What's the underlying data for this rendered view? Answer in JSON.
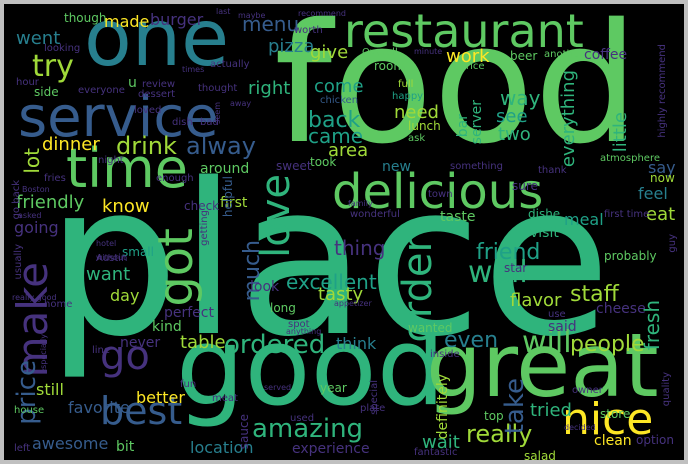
{
  "palette": {
    "background": "#000000",
    "border": "#c0c0c0",
    "yellow": "#fde725",
    "lime": "#a0da39",
    "green": "#5ec962",
    "sea": "#2fb47c",
    "teal": "#1fa187",
    "blue": "#277f8e",
    "slate": "#365c8d",
    "indigo": "#46327e",
    "purple": "#440154"
  },
  "words": [
    {
      "text": "place",
      "color": "#2fb47c"
    },
    {
      "text": "food",
      "color": "#5ec962"
    },
    {
      "text": "good",
      "color": "#2fb47c"
    },
    {
      "text": "great",
      "color": "#5ec962"
    },
    {
      "text": "one",
      "color": "#277f8e"
    },
    {
      "text": "restaurant",
      "color": "#5ec962"
    },
    {
      "text": "service",
      "color": "#365c8d"
    },
    {
      "text": "time",
      "color": "#5ec962"
    },
    {
      "text": "delicious",
      "color": "#5ec962"
    },
    {
      "text": "nice",
      "color": "#fde725"
    },
    {
      "text": "got",
      "color": "#5ec962"
    },
    {
      "text": "love",
      "color": "#2fb47c"
    },
    {
      "text": "order",
      "color": "#2fb47c"
    },
    {
      "text": "make",
      "color": "#46327e"
    },
    {
      "text": "go",
      "color": "#46327e"
    },
    {
      "text": "best",
      "color": "#365c8d"
    },
    {
      "text": "well",
      "color": "#2fb47c"
    },
    {
      "text": "ordered",
      "color": "#2fb47c"
    },
    {
      "text": "really",
      "color": "#a0da39"
    },
    {
      "text": "amazing",
      "color": "#2fb47c"
    },
    {
      "text": "will",
      "color": "#5ec962"
    },
    {
      "text": "staff",
      "color": "#a0da39"
    },
    {
      "text": "try",
      "color": "#a0da39"
    },
    {
      "text": "drink",
      "color": "#a0da39"
    },
    {
      "text": "alway",
      "color": "#365c8d"
    },
    {
      "text": "back",
      "color": "#1fa187"
    },
    {
      "text": "came",
      "color": "#1fa187"
    },
    {
      "text": "friend",
      "color": "#1fa187"
    },
    {
      "text": "take",
      "color": "#365c8d"
    },
    {
      "text": "people",
      "color": "#a0da39"
    },
    {
      "text": "price",
      "color": "#365c8d"
    },
    {
      "text": "even",
      "color": "#277f8e"
    },
    {
      "text": "excellent",
      "color": "#1fa187"
    },
    {
      "text": "much",
      "color": "#365c8d"
    },
    {
      "text": "thing",
      "color": "#46327e"
    },
    {
      "text": "table",
      "color": "#a0da39"
    },
    {
      "text": "fresh",
      "color": "#2fb47c"
    },
    {
      "text": "went",
      "color": "#277f8e"
    },
    {
      "text": "made",
      "color": "#fde725"
    },
    {
      "text": "menu",
      "color": "#365c8d"
    },
    {
      "text": "burger",
      "color": "#46327e"
    },
    {
      "text": "pizza",
      "color": "#277f8e"
    },
    {
      "text": "give",
      "color": "#a0da39"
    },
    {
      "text": "work",
      "color": "#fde725"
    },
    {
      "text": "way",
      "color": "#2fb47c"
    },
    {
      "text": "see",
      "color": "#1fa187"
    },
    {
      "text": "two",
      "color": "#2fb47c"
    },
    {
      "text": "need",
      "color": "#a0da39"
    },
    {
      "text": "right",
      "color": "#2fb47c"
    },
    {
      "text": "come",
      "color": "#1fa187"
    },
    {
      "text": "area",
      "color": "#a0da39"
    },
    {
      "text": "lot",
      "color": "#a0da39"
    },
    {
      "text": "dinner",
      "color": "#fde725"
    },
    {
      "text": "friendly",
      "color": "#5ec962"
    },
    {
      "text": "know",
      "color": "#fde725"
    },
    {
      "text": "going",
      "color": "#46327e"
    },
    {
      "text": "want",
      "color": "#2fb47c"
    },
    {
      "text": "day",
      "color": "#a0da39"
    },
    {
      "text": "tasty",
      "color": "#a0da39"
    },
    {
      "text": "flavor",
      "color": "#a0da39"
    },
    {
      "text": "eat",
      "color": "#a0da39"
    },
    {
      "text": "feel",
      "color": "#277f8e"
    },
    {
      "text": "say",
      "color": "#365c8d"
    },
    {
      "text": "meal",
      "color": "#1fa187"
    },
    {
      "text": "still",
      "color": "#a0da39"
    },
    {
      "text": "better",
      "color": "#fde725"
    },
    {
      "text": "favorite",
      "color": "#365c8d"
    },
    {
      "text": "awesome",
      "color": "#365c8d"
    },
    {
      "text": "bit",
      "color": "#5ec962"
    },
    {
      "text": "location",
      "color": "#277f8e"
    },
    {
      "text": "experience",
      "color": "#46327e"
    },
    {
      "text": "wait",
      "color": "#2fb47c"
    },
    {
      "text": "tried",
      "color": "#2fb47c"
    },
    {
      "text": "think",
      "color": "#277f8e"
    },
    {
      "text": "everything",
      "color": "#2fb47c"
    },
    {
      "text": "little",
      "color": "#2fb47c"
    },
    {
      "text": "first",
      "color": "#a0da39"
    },
    {
      "text": "perfect",
      "color": "#46327e"
    },
    {
      "text": "never",
      "color": "#46327e"
    },
    {
      "text": "kind",
      "color": "#5ec962"
    },
    {
      "text": "cheese",
      "color": "#46327e"
    },
    {
      "text": "said",
      "color": "#46327e"
    },
    {
      "text": "clean",
      "color": "#fde725"
    },
    {
      "text": "option",
      "color": "#46327e"
    },
    {
      "text": "coffee",
      "color": "#46327e"
    },
    {
      "text": "beer",
      "color": "#5ec962"
    },
    {
      "text": "bar",
      "color": "#2fb47c"
    },
    {
      "text": "server",
      "color": "#2fb47c"
    },
    {
      "text": "taste",
      "color": "#5ec962"
    },
    {
      "text": "dishe",
      "color": "#2fb47c"
    },
    {
      "text": "visit",
      "color": "#2fb47c"
    },
    {
      "text": "sure",
      "color": "#46327e"
    },
    {
      "text": "new",
      "color": "#277f8e"
    },
    {
      "text": "took",
      "color": "#5ec962"
    },
    {
      "text": "sweet",
      "color": "#46327e"
    },
    {
      "text": "around",
      "color": "#5ec962"
    },
    {
      "text": "check",
      "color": "#46327e"
    },
    {
      "text": "look",
      "color": "#46327e"
    },
    {
      "text": "long",
      "color": "#5ec962"
    },
    {
      "text": "probably",
      "color": "#5ec962"
    },
    {
      "text": "star",
      "color": "#46327e"
    },
    {
      "text": "definitely",
      "color": "#a0da39"
    },
    {
      "text": "top",
      "color": "#5ec962"
    },
    {
      "text": "salad",
      "color": "#a0da39"
    },
    {
      "text": "fantastic",
      "color": "#46327e"
    },
    {
      "text": "store",
      "color": "#5ec962"
    },
    {
      "text": "owner",
      "color": "#46327e"
    },
    {
      "text": "use",
      "color": "#46327e"
    },
    {
      "text": "special",
      "color": "#46327e"
    },
    {
      "text": "year",
      "color": "#5ec962"
    },
    {
      "text": "used",
      "color": "#46327e"
    },
    {
      "text": "sauce",
      "color": "#46327e"
    },
    {
      "text": "fun",
      "color": "#46327e"
    },
    {
      "text": "small",
      "color": "#1fa187"
    },
    {
      "text": "home",
      "color": "#46327e"
    },
    {
      "text": "lunch",
      "color": "#a0da39"
    },
    {
      "text": "ask",
      "color": "#5ec962"
    },
    {
      "text": "chicken",
      "color": "#365c8d"
    },
    {
      "text": "happy",
      "color": "#1fa187"
    },
    {
      "text": "full",
      "color": "#a0da39"
    },
    {
      "text": "room",
      "color": "#5ec962"
    },
    {
      "text": "Overall",
      "color": "#5ec962"
    },
    {
      "text": "minute",
      "color": "#46327e"
    },
    {
      "text": "rice",
      "color": "#5ec962"
    },
    {
      "text": "another",
      "color": "#5ec962"
    },
    {
      "text": "highly recommend",
      "color": "#46327e"
    },
    {
      "text": "quality",
      "color": "#46327e"
    },
    {
      "text": "atmosphere",
      "color": "#5ec962"
    },
    {
      "text": "thank",
      "color": "#46327e"
    },
    {
      "text": "something",
      "color": "#46327e"
    },
    {
      "text": "now",
      "color": "#a0da39"
    },
    {
      "text": "first time",
      "color": "#46327e"
    },
    {
      "text": "guy",
      "color": "#46327e"
    },
    {
      "text": "town",
      "color": "#46327e"
    },
    {
      "text": "wonderful",
      "color": "#46327e"
    },
    {
      "text": "family",
      "color": "#46327e"
    },
    {
      "text": "seem",
      "color": "#46327e"
    },
    {
      "text": "enough",
      "color": "#46327e"
    },
    {
      "text": "helpful",
      "color": "#365c8d"
    },
    {
      "text": "getting",
      "color": "#46327e"
    },
    {
      "text": "Austin",
      "color": "#46327e"
    },
    {
      "text": "hotel",
      "color": "#46327e"
    },
    {
      "text": "without",
      "color": "#46327e"
    },
    {
      "text": "spot",
      "color": "#46327e"
    },
    {
      "text": "anything",
      "color": "#46327e"
    },
    {
      "text": "appetizer",
      "color": "#46327e"
    },
    {
      "text": "wanted",
      "color": "#5ec962"
    },
    {
      "text": "inside",
      "color": "#46327e"
    },
    {
      "text": "plate",
      "color": "#46327e"
    },
    {
      "text": "meat",
      "color": "#46327e"
    },
    {
      "text": "served",
      "color": "#46327e"
    },
    {
      "text": "decided",
      "color": "#46327e"
    },
    {
      "text": "Boston",
      "color": "#46327e"
    },
    {
      "text": "asked",
      "color": "#46327e"
    },
    {
      "text": "usually",
      "color": "#46327e"
    },
    {
      "text": "really good",
      "color": "#46327e"
    },
    {
      "text": "especially",
      "color": "#46327e"
    },
    {
      "text": "house",
      "color": "#5ec962"
    },
    {
      "text": "left",
      "color": "#46327e"
    },
    {
      "text": "line",
      "color": "#46327e"
    },
    {
      "text": "fries",
      "color": "#46327e"
    },
    {
      "text": "go back",
      "color": "#46327e"
    },
    {
      "text": "night",
      "color": "#46327e"
    },
    {
      "text": "hour",
      "color": "#46327e"
    },
    {
      "text": "side",
      "color": "#5ec962"
    },
    {
      "text": "everyone",
      "color": "#46327e"
    },
    {
      "text": "looking",
      "color": "#46327e"
    },
    {
      "text": "though",
      "color": "#5ec962"
    },
    {
      "text": "u",
      "color": "#5ec962"
    },
    {
      "text": "review",
      "color": "#46327e"
    },
    {
      "text": "dessert",
      "color": "#46327e"
    },
    {
      "text": "loved",
      "color": "#46327e"
    },
    {
      "text": "dish",
      "color": "#46327e"
    },
    {
      "text": "bad",
      "color": "#46327e"
    },
    {
      "text": "thought",
      "color": "#46327e"
    },
    {
      "text": "actually",
      "color": "#46327e"
    },
    {
      "text": "worth",
      "color": "#46327e"
    },
    {
      "text": "maybe",
      "color": "#46327e"
    },
    {
      "text": "last",
      "color": "#46327e"
    },
    {
      "text": "recommend",
      "color": "#46327e"
    },
    {
      "text": "times",
      "color": "#46327e"
    },
    {
      "text": "away",
      "color": "#46327e"
    }
  ]
}
